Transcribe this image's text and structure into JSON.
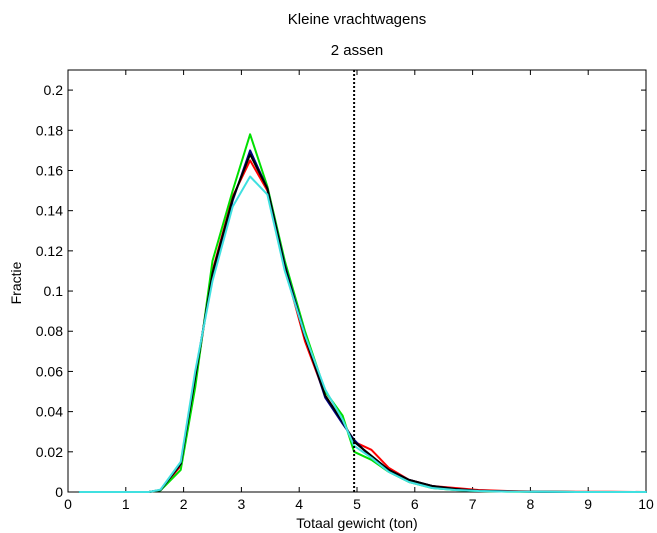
{
  "chart_data": {
    "type": "line",
    "title": "Kleine vrachtwagens",
    "subtitle": "2 assen",
    "xlabel": "Totaal gewicht (ton)",
    "ylabel": "Fractie",
    "xlim": [
      0,
      10
    ],
    "ylim": [
      0,
      0.21
    ],
    "xticks": [
      0,
      1,
      2,
      3,
      4,
      5,
      6,
      7,
      8,
      9,
      10
    ],
    "yticks": [
      0,
      0.02,
      0.04,
      0.06,
      0.08,
      0.1,
      0.12,
      0.14,
      0.16,
      0.18,
      0.2
    ],
    "ytick_labels": [
      "0",
      "0.02",
      "0.04",
      "0.06",
      "0.08",
      "0.1",
      "0.12",
      "0.14",
      "0.16",
      "0.18",
      "0.2"
    ],
    "grid": false,
    "legend": "none",
    "reference_line": {
      "x": 4.95,
      "style": "dotted",
      "color": "#000000"
    },
    "x": [
      0.2,
      0.6,
      1.0,
      1.4,
      1.6,
      1.95,
      2.2,
      2.5,
      2.85,
      3.15,
      3.45,
      3.75,
      4.1,
      4.45,
      4.75,
      4.95,
      5.25,
      5.55,
      5.9,
      6.3,
      6.7,
      7.1,
      7.6,
      8.2,
      8.8,
      9.4,
      10.0
    ],
    "series": [
      {
        "color": "#ff0000",
        "values": [
          0,
          0,
          0,
          0,
          0.001,
          0.013,
          0.055,
          0.11,
          0.147,
          0.165,
          0.15,
          0.112,
          0.075,
          0.048,
          0.035,
          0.025,
          0.021,
          0.012,
          0.006,
          0.003,
          0.002,
          0.001,
          0.0005,
          0.0002,
          0.0001,
          0.0001,
          0
        ]
      },
      {
        "color": "#00e000",
        "values": [
          0,
          0,
          0,
          0,
          0.0008,
          0.011,
          0.052,
          0.115,
          0.15,
          0.178,
          0.152,
          0.115,
          0.08,
          0.05,
          0.038,
          0.02,
          0.016,
          0.01,
          0.005,
          0.002,
          0.001,
          0.0005,
          0.0002,
          0.0001,
          0,
          0,
          0
        ]
      },
      {
        "color": "#000080",
        "values": [
          0,
          0,
          0,
          0,
          0.001,
          0.014,
          0.058,
          0.108,
          0.145,
          0.17,
          0.151,
          0.113,
          0.078,
          0.047,
          0.034,
          0.026,
          0.017,
          0.011,
          0.006,
          0.003,
          0.0015,
          0.0006,
          0.0003,
          0.0001,
          0,
          0,
          0
        ]
      },
      {
        "color": "#000000",
        "values": [
          0,
          0,
          0,
          0,
          0.001,
          0.014,
          0.057,
          0.109,
          0.146,
          0.168,
          0.151,
          0.112,
          0.077,
          0.048,
          0.035,
          0.025,
          0.018,
          0.011,
          0.006,
          0.003,
          0.0015,
          0.0006,
          0.0003,
          0.0001,
          0,
          0,
          0
        ]
      },
      {
        "color": "#40e0e0",
        "values": [
          0,
          0,
          0,
          0,
          0.0012,
          0.015,
          0.06,
          0.105,
          0.142,
          0.157,
          0.148,
          0.11,
          0.078,
          0.051,
          0.036,
          0.023,
          0.017,
          0.01,
          0.005,
          0.002,
          0.001,
          0.0005,
          0.0002,
          0.0001,
          0,
          0,
          0
        ]
      }
    ]
  }
}
